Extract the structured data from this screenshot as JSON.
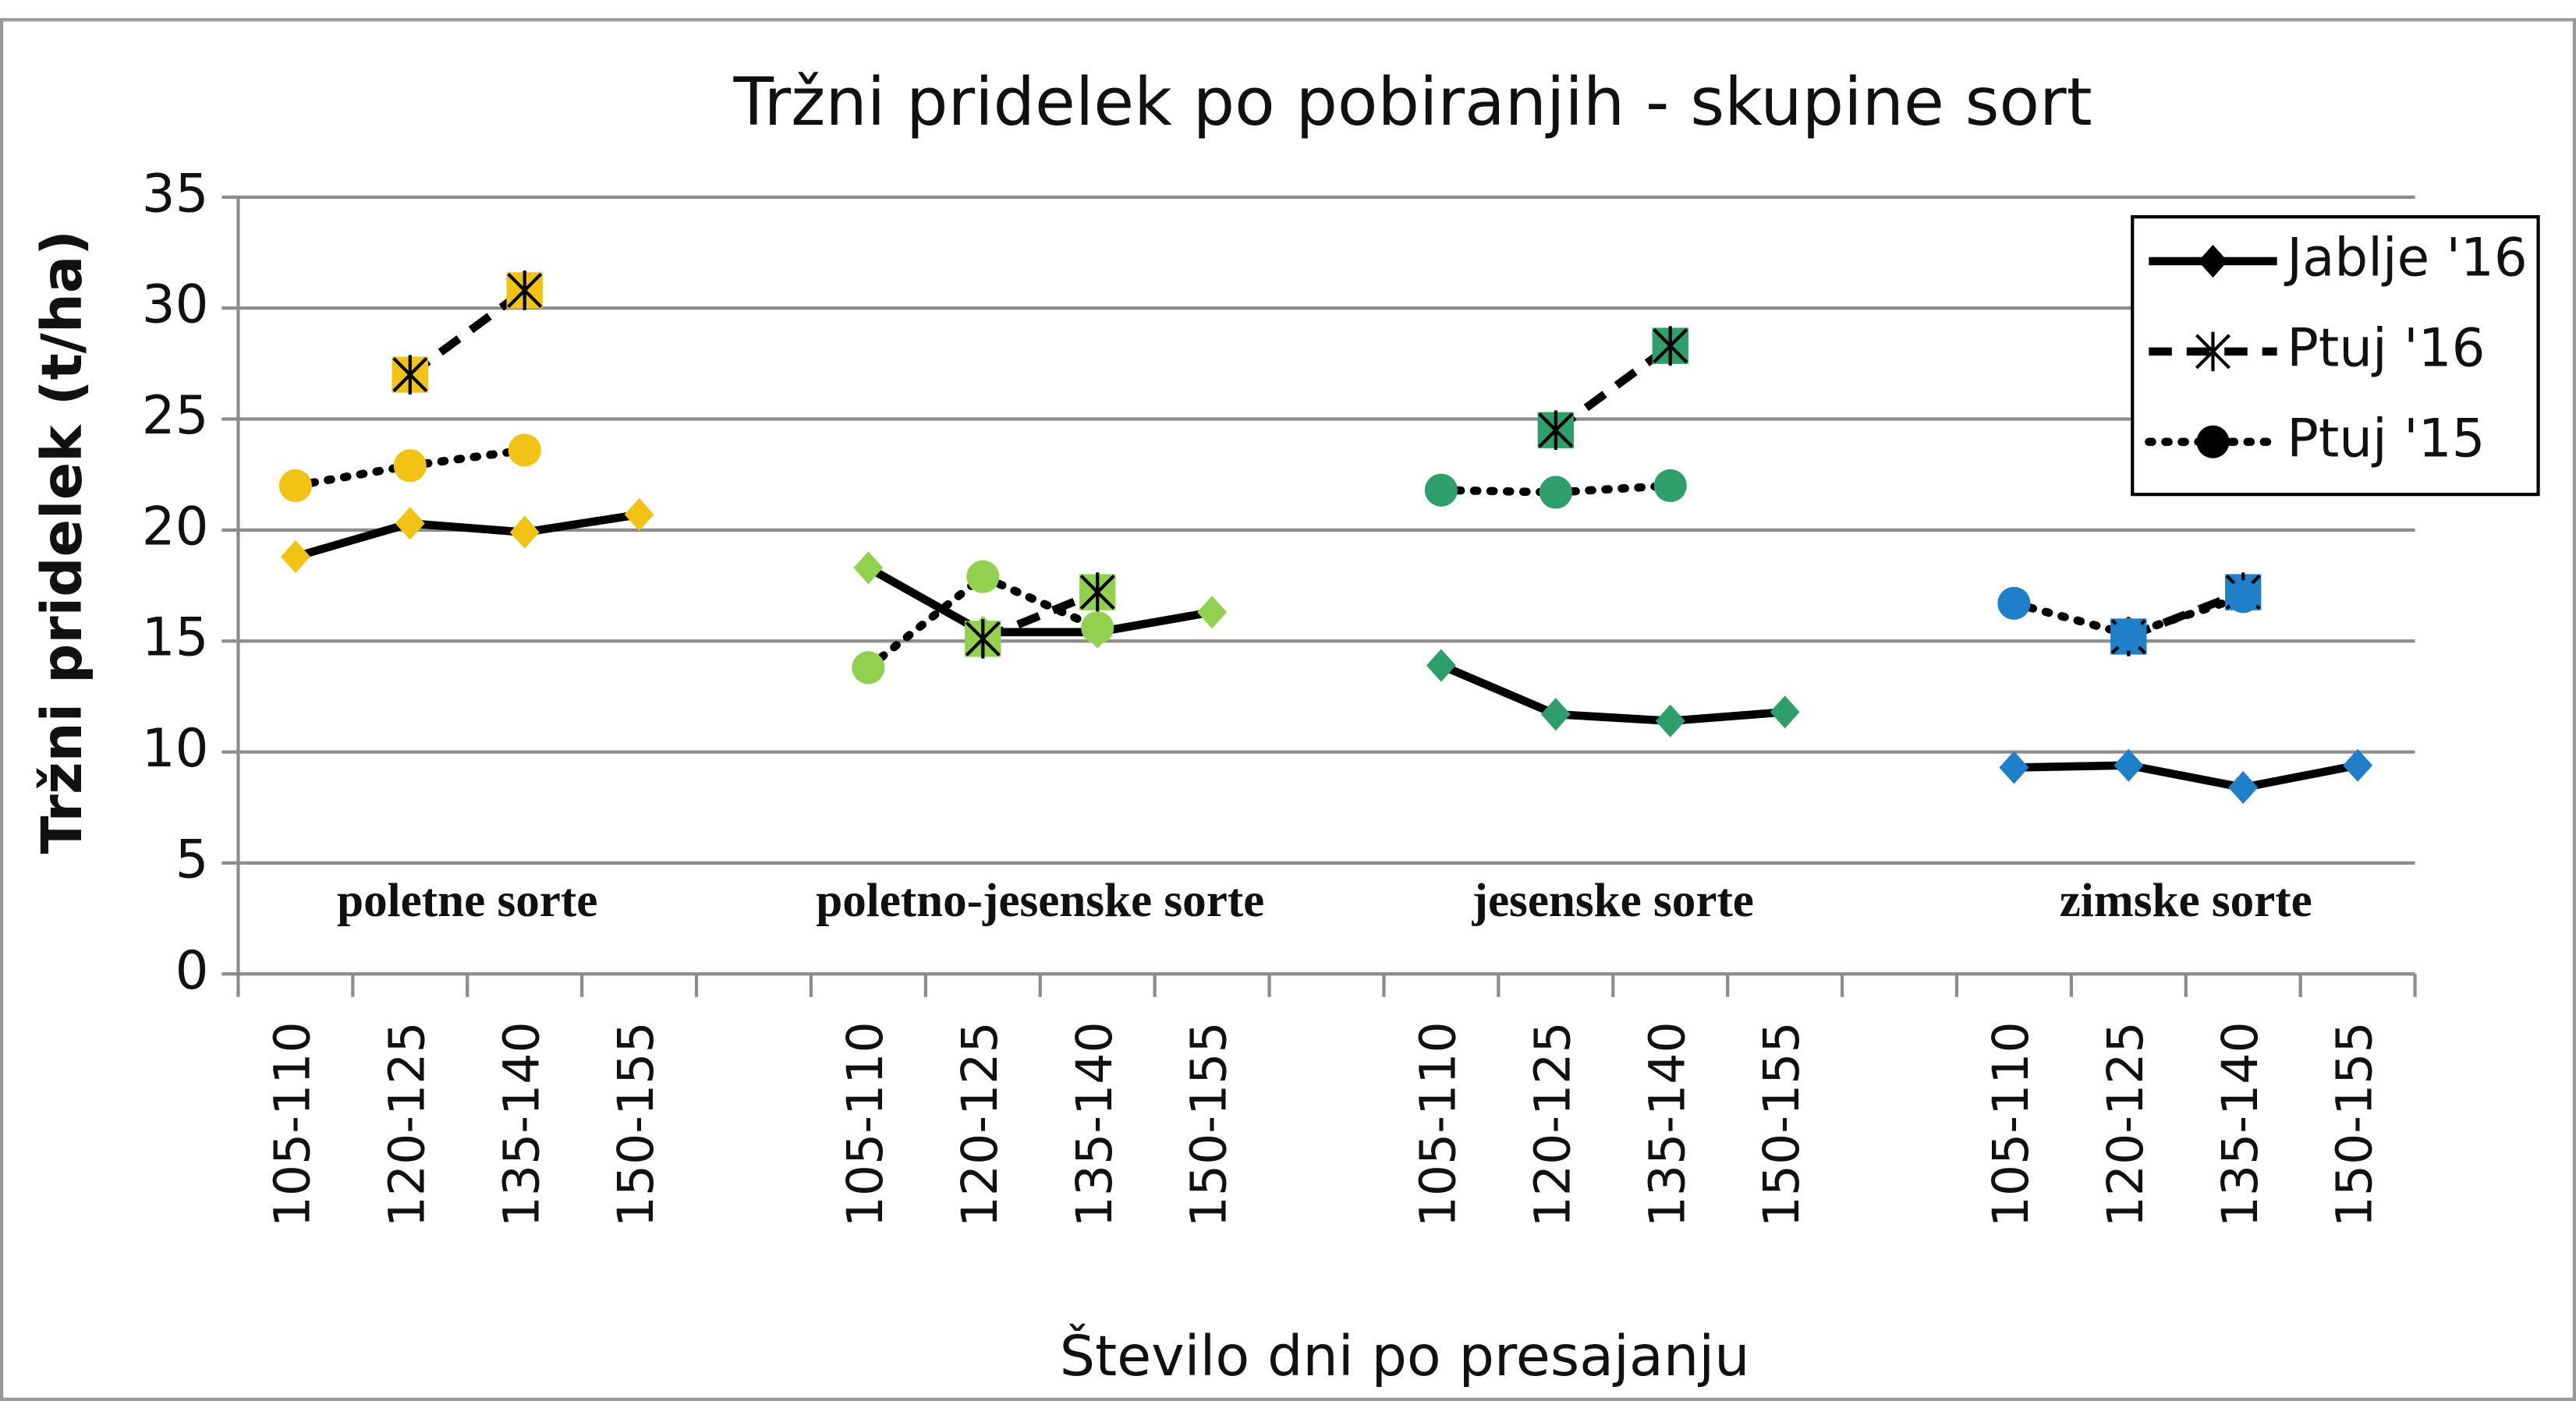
{
  "chart_data": {
    "type": "line",
    "title": "Tržni pridelek po pobiranjih - skupine sort",
    "x_label": "Število dni po presajanju",
    "y_label": "Tržni pridelek  (t/ha)",
    "categories": [
      "105-110",
      "120-125",
      "135-140",
      "150-155",
      null,
      "105-110",
      "120-125",
      "135-140",
      "150-155",
      null,
      "105-110",
      "120-125",
      "135-140",
      "150-155",
      null,
      "105-110",
      "120-125",
      "135-140",
      "150-155"
    ],
    "groups": [
      {
        "label": "poletne sorte",
        "color": "#f2c314"
      },
      {
        "label": "poletno-jesenske sorte",
        "color": "#92d050"
      },
      {
        "label": "jesenske sorte",
        "color": "#2e9e6b"
      },
      {
        "label": "zimske sorte",
        "color": "#1f7fc8"
      }
    ],
    "series": [
      {
        "name": "Jablje '16",
        "color": "#000000",
        "dash": "solid",
        "marker": "diamond",
        "values": [
          18.8,
          20.3,
          19.9,
          20.7,
          null,
          18.3,
          15.4,
          15.4,
          16.3,
          null,
          13.9,
          11.7,
          11.4,
          11.8,
          null,
          9.3,
          9.4,
          8.4,
          9.4
        ]
      },
      {
        "name": "Ptuj '16",
        "color": "#000000",
        "dash": "dashed",
        "marker": "asterisk",
        "values": [
          null,
          27.0,
          30.8,
          null,
          null,
          null,
          15.1,
          17.2,
          null,
          null,
          null,
          24.5,
          28.3,
          null,
          null,
          null,
          15.2,
          17.2,
          null
        ]
      },
      {
        "name": "Ptuj '15",
        "color": "#000000",
        "dash": "dotted",
        "marker": "circle",
        "values": [
          22.0,
          22.9,
          23.6,
          null,
          null,
          13.8,
          17.9,
          15.6,
          null,
          null,
          21.8,
          21.7,
          22.0,
          null,
          null,
          16.7,
          15.3,
          17.0,
          null
        ]
      }
    ],
    "ylim": [
      0,
      35
    ],
    "yticks": [
      0,
      5,
      10,
      15,
      20,
      25,
      30,
      35
    ],
    "grid": true,
    "legend": "top-right"
  }
}
